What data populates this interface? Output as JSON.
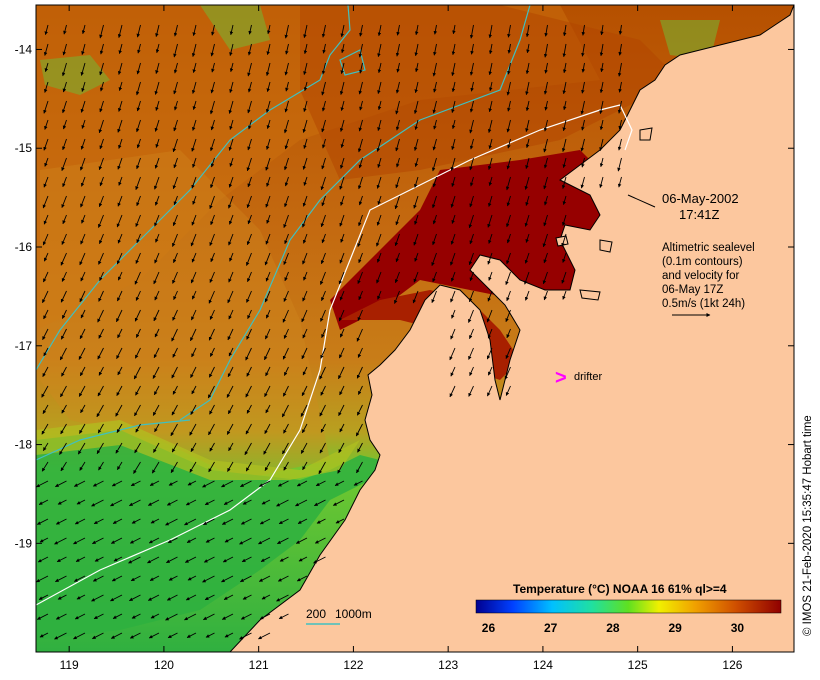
{
  "map": {
    "axes": {
      "x_ticks": [
        "119",
        "120",
        "121",
        "122",
        "123",
        "124",
        "125",
        "126"
      ],
      "y_ticks": [
        "-14",
        "-15",
        "-16",
        "-17",
        "-18",
        "-19"
      ],
      "lon_range": [
        118.65,
        126.65
      ],
      "lat_range": [
        -20.1,
        -13.55
      ]
    },
    "date_label": "06-May-2002",
    "time_label": "17:41Z",
    "altimetry_note": {
      "line1": "Altimetric sealevel",
      "line2": "(0.1m contours)",
      "line3": "and velocity for",
      "line4": "06-May 17Z",
      "line5": "0.5m/s (1kt 24h)"
    },
    "drifter_symbol": ">",
    "drifter_label": "drifter",
    "depth_legend": {
      "label_200": "200",
      "label_1000": "1000m"
    },
    "colorbar": {
      "title": "Temperature (°C) NOAA 16 61% ql>=4",
      "ticks": [
        "26",
        "27",
        "28",
        "29",
        "30"
      ],
      "tick_values": [
        26,
        27,
        28,
        29,
        30
      ],
      "range": [
        25.8,
        30.7
      ]
    },
    "copyright": "© IMOS 21-Feb-2020 15:35:47 Hobart time",
    "colors": {
      "land": "#fcc79e",
      "warm_sst": "#b94a00",
      "hot_sst": "#960000",
      "cool_sst": "#40c030",
      "contour_200": "#40c0c0",
      "contour_1000": "#ffffff",
      "drifter": "#ff00ff",
      "arrow": "#000000"
    }
  }
}
